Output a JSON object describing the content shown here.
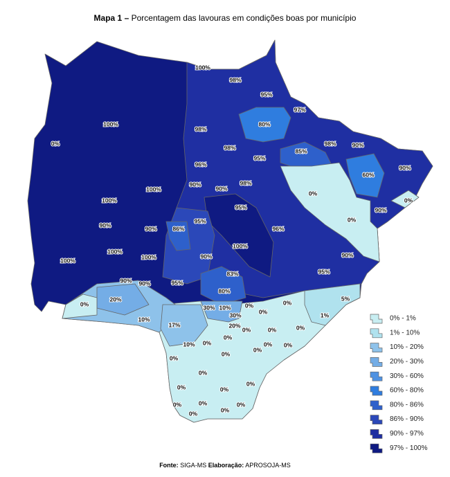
{
  "title": {
    "bold": "Mapa 1 –",
    "text": "Porcentagem das lavouras em condições boas por município"
  },
  "legend": [
    {
      "label": "0% - 1%",
      "color": "#c8eef2"
    },
    {
      "label": "1% - 10%",
      "color": "#b0e2ee"
    },
    {
      "label": "10% - 20%",
      "color": "#8ec2ea"
    },
    {
      "label": "20% - 30%",
      "color": "#74ade6"
    },
    {
      "label": "30% - 60%",
      "color": "#4f92e2"
    },
    {
      "label": "60% - 80%",
      "color": "#2f7ddf"
    },
    {
      "label": "80% - 86%",
      "color": "#2e60cb"
    },
    {
      "label": "86% - 90%",
      "color": "#2b48b9"
    },
    {
      "label": "90% - 97%",
      "color": "#1f2fa2"
    },
    {
      "label": "97% - 100%",
      "color": "#0f1a82"
    }
  ],
  "labels": [
    "100%",
    "98%",
    "95%",
    "97%",
    "80%",
    "100%",
    "0%",
    "98%",
    "98%",
    "95%",
    "85%",
    "98%",
    "90%",
    "96%",
    "60%",
    "90%",
    "0%",
    "100%",
    "90%",
    "90%",
    "98%",
    "0%",
    "100%",
    "95%",
    "0%",
    "90%",
    "90%",
    "90%",
    "86%",
    "95%",
    "96%",
    "100%",
    "100%",
    "100%",
    "90%",
    "90%",
    "100%",
    "83%",
    "95%",
    "90%",
    "90%",
    "95%",
    "80%",
    "0%",
    "20%",
    "0%",
    "5%",
    "30%",
    "10%",
    "0%",
    "30%",
    "0%",
    "1%",
    "10%",
    "20%",
    "0%",
    "0%",
    "17%",
    "0%",
    "0%",
    "0%",
    "0%",
    "10%",
    "0%",
    "0%",
    "0%",
    "0%",
    "0%",
    "0%",
    "0%",
    "0%",
    "0%",
    "0%",
    "0%",
    "0%",
    "0%"
  ],
  "source": {
    "label1": "Fonte:",
    "text1": "SIGA-MS",
    "label2": "Elaboração:",
    "text2": "APROSOJA-MS"
  }
}
